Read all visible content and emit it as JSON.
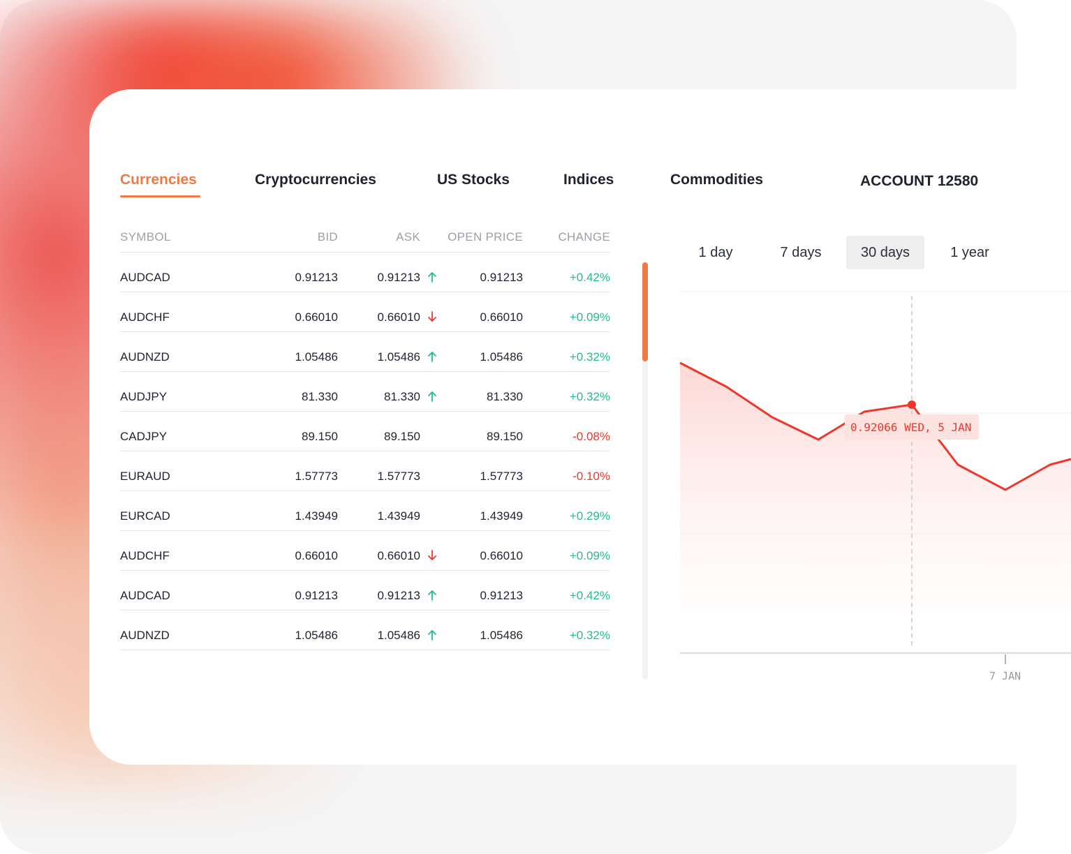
{
  "tabs": [
    {
      "label": "Currencies",
      "active": true
    },
    {
      "label": "Cryptocurrencies",
      "active": false
    },
    {
      "label": "US Stocks",
      "active": false
    },
    {
      "label": "Indices",
      "active": false
    },
    {
      "label": "Commodities",
      "active": false
    }
  ],
  "account": "ACCOUNT 12580",
  "table": {
    "headers": {
      "symbol": "SYMBOL",
      "bid": "BID",
      "ask": "ASK",
      "open": "OPEN PRICE",
      "change": "CHANGE"
    },
    "rows": [
      {
        "symbol": "AUDCAD",
        "bid": "0.91213",
        "ask": "0.91213",
        "trend": "up",
        "open": "0.91213",
        "change": "+0.42%",
        "direction": "positive"
      },
      {
        "symbol": "AUDCHF",
        "bid": "0.66010",
        "ask": "0.66010",
        "trend": "down",
        "open": "0.66010",
        "change": "+0.09%",
        "direction": "positive"
      },
      {
        "symbol": "AUDNZD",
        "bid": "1.05486",
        "ask": "1.05486",
        "trend": "up",
        "open": "1.05486",
        "change": "+0.32%",
        "direction": "positive"
      },
      {
        "symbol": "AUDJPY",
        "bid": "81.330",
        "ask": "81.330",
        "trend": "up",
        "open": "81.330",
        "change": "+0.32%",
        "direction": "positive"
      },
      {
        "symbol": "CADJPY",
        "bid": "89.150",
        "ask": "89.150",
        "trend": "none",
        "open": "89.150",
        "change": "-0.08%",
        "direction": "negative"
      },
      {
        "symbol": "EURAUD",
        "bid": "1.57773",
        "ask": "1.57773",
        "trend": "none",
        "open": "1.57773",
        "change": "-0.10%",
        "direction": "negative"
      },
      {
        "symbol": "EURCAD",
        "bid": "1.43949",
        "ask": "1.43949",
        "trend": "none",
        "open": "1.43949",
        "change": "+0.29%",
        "direction": "positive"
      },
      {
        "symbol": "AUDCHF",
        "bid": "0.66010",
        "ask": "0.66010",
        "trend": "down",
        "open": "0.66010",
        "change": "+0.09%",
        "direction": "positive"
      },
      {
        "symbol": "AUDCAD",
        "bid": "0.91213",
        "ask": "0.91213",
        "trend": "up",
        "open": "0.91213",
        "change": "+0.42%",
        "direction": "positive"
      },
      {
        "symbol": "AUDNZD",
        "bid": "1.05486",
        "ask": "1.05486",
        "trend": "up",
        "open": "1.05486",
        "change": "+0.32%",
        "direction": "positive"
      }
    ]
  },
  "ranges": [
    {
      "label": "1 day",
      "active": false
    },
    {
      "label": "7 days",
      "active": false
    },
    {
      "label": "30 days",
      "active": true
    },
    {
      "label": "1 year",
      "active": false
    }
  ],
  "colors": {
    "accent": "#f07a45",
    "positive": "#1fbf86",
    "negative": "#f0362c",
    "line": "#f0362c"
  },
  "chart_data": {
    "type": "area",
    "tooltip": {
      "value": "0.92066",
      "date": "WED, 5 JAN",
      "text": "0.92066 WED, 5 JAN"
    },
    "x_tick_labels": [
      "7 JAN"
    ],
    "grid": true
  }
}
